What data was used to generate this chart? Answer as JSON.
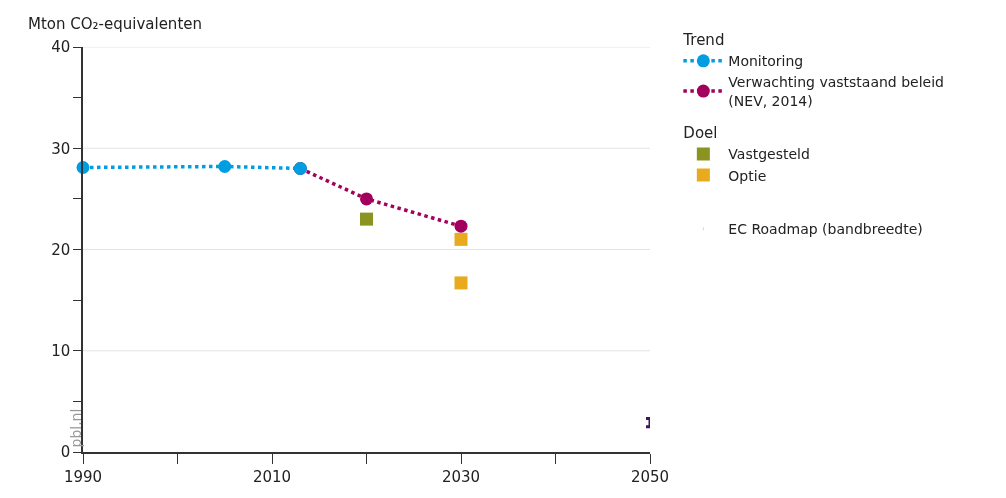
{
  "chart_data": {
    "type": "line",
    "ylabel": "Mton CO₂-equivalenten",
    "annotations": [
      "Trend",
      "Doel",
      "pbl.nl"
    ],
    "xlim": [
      1990,
      2050
    ],
    "xticks": [
      1990,
      {
        "value": 2000,
        "label": null
      },
      2010,
      {
        "value": 2020,
        "label": null
      },
      2030,
      {
        "value": 2040,
        "label": null
      },
      2050
    ],
    "ylim": [
      0,
      40
    ],
    "yticks": [
      0,
      {
        "value": 5,
        "label": null
      },
      10,
      {
        "value": 15,
        "label": null
      },
      20,
      {
        "value": 25,
        "label": null
      },
      30,
      {
        "value": 35,
        "label": null
      },
      40
    ],
    "grid": "y",
    "legend": "top right",
    "series": [
      {
        "name": "Monitoring",
        "color": "#009ee0",
        "marker": "circle",
        "line_style": "dotted",
        "x": [
          1990,
          2005,
          2013
        ],
        "values": [
          28.1,
          28.2,
          28.0
        ]
      },
      {
        "name": "Verwachting vaststaand beleid\n(NEV, 2014)",
        "color": "#a3005e",
        "marker": "circle",
        "line_style": "dotted",
        "x": [
          2013,
          2020,
          2030
        ],
        "values": [
          28.0,
          25.0,
          22.3
        ]
      },
      {
        "name": "Vastgesteld",
        "type": "scatter",
        "color": "#8c9421",
        "marker": "square",
        "x": [
          2020
        ],
        "values": [
          23.0
        ]
      },
      {
        "name": "Optie",
        "type": "scatter",
        "color": "#e8ab1e",
        "marker": "square",
        "x": [
          2030,
          2030
        ],
        "values": [
          21.0,
          16.7
        ]
      },
      {
        "name": "EC Roadmap (bandbreedte)",
        "type": "scatter",
        "color": "#42145f",
        "x": [
          2050
        ],
        "values": [
          2.9
        ],
        "errors": [
          [
            2.5,
            3.3
          ]
        ]
      }
    ]
  }
}
